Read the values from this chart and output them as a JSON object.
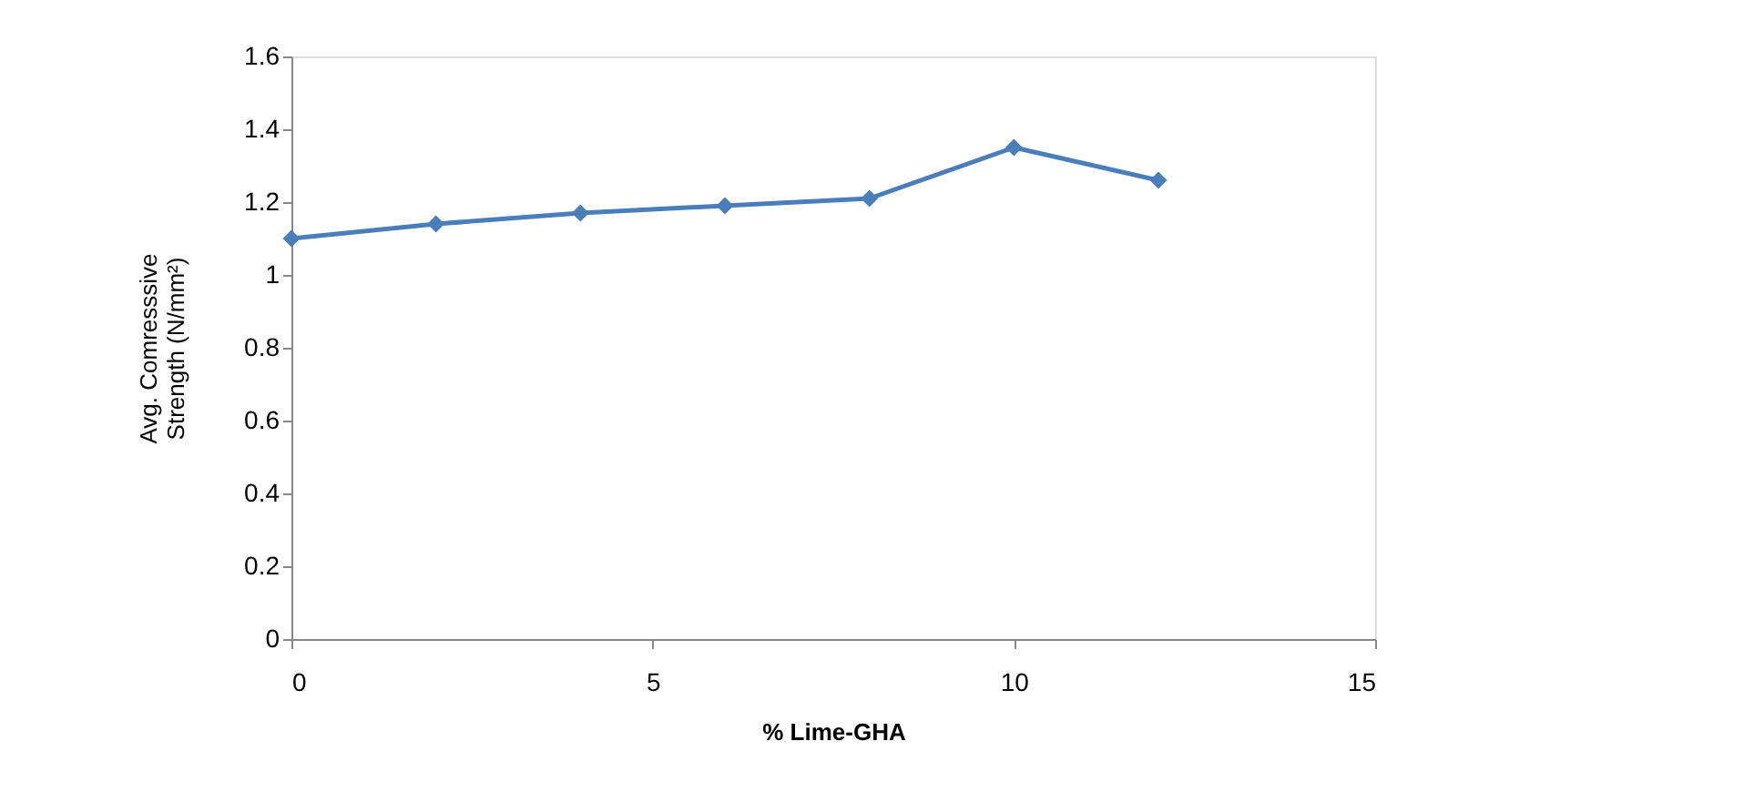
{
  "chart_data": {
    "type": "line",
    "xlabel": "% Lime-GHA",
    "ylabel": "Avg. Comresssive Strength (N/mm²)",
    "x": [
      0,
      2,
      4,
      6,
      8,
      10,
      12
    ],
    "series": [
      {
        "color": "#4a7ebb",
        "values": [
          1.1,
          1.14,
          1.17,
          1.19,
          1.21,
          1.35,
          1.26
        ]
      }
    ],
    "xlim": [
      0,
      15
    ],
    "xticks": [
      0,
      5,
      10,
      15
    ],
    "ylim": [
      0,
      1.6
    ],
    "yticks": [
      0,
      0.2,
      0.4,
      0.6,
      0.8,
      1,
      1.2,
      1.4,
      1.6
    ],
    "grid": false,
    "marker": "diamond",
    "line_style": "solid"
  }
}
